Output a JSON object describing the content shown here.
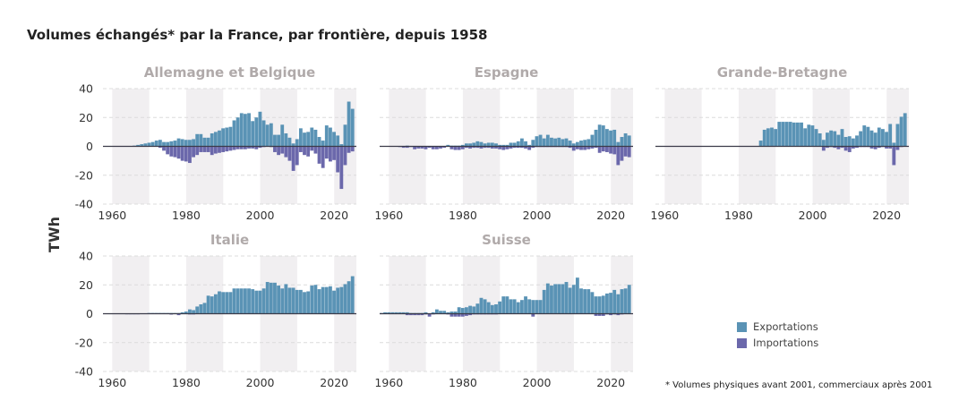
{
  "title": "Volumes échangés* par la France, par frontière, depuis 1958",
  "footnote": "* Volumes physiques avant 2001, commerciaux après 2001",
  "colors": {
    "exports": "#5a93b5",
    "imports": "#6b68ab",
    "band": "#f1eff1",
    "panel_title": "#b0aaaa"
  },
  "chart_data": {
    "type": "bar",
    "stacked_diverging": true,
    "ylabel": "TWh",
    "ylim": [
      -40,
      40
    ],
    "yticks": [
      40,
      20,
      0,
      -20,
      -40
    ],
    "xticks": [
      1960,
      1980,
      2000,
      2020
    ],
    "xlim": [
      1957.5,
      2026
    ],
    "shaded_decades": [
      [
        1960,
        1970
      ],
      [
        1980,
        1990
      ],
      [
        2000,
        2010
      ],
      [
        2020,
        2026
      ]
    ],
    "grid": true,
    "legend": {
      "position": "bottom-right",
      "items": [
        "Exportations",
        "Importations"
      ]
    },
    "years": [
      1958,
      1959,
      1960,
      1961,
      1962,
      1963,
      1964,
      1965,
      1966,
      1967,
      1968,
      1969,
      1970,
      1971,
      1972,
      1973,
      1974,
      1975,
      1976,
      1977,
      1978,
      1979,
      1980,
      1981,
      1982,
      1983,
      1984,
      1985,
      1986,
      1987,
      1988,
      1989,
      1990,
      1991,
      1992,
      1993,
      1994,
      1995,
      1996,
      1997,
      1998,
      1999,
      2000,
      2001,
      2002,
      2003,
      2004,
      2005,
      2006,
      2007,
      2008,
      2009,
      2010,
      2011,
      2012,
      2013,
      2014,
      2015,
      2016,
      2017,
      2018,
      2019,
      2020,
      2021,
      2022,
      2023,
      2024,
      2025
    ],
    "panels": [
      {
        "title": "Allemagne et Belgique",
        "exports": [
          0,
          0,
          0,
          0,
          0,
          0,
          0,
          0.2,
          0.5,
          1,
          1.5,
          2,
          2.5,
          3,
          4,
          4.5,
          3,
          3,
          3.5,
          4,
          5.5,
          5,
          4.5,
          4.5,
          5,
          8.5,
          8.5,
          6,
          6,
          9,
          10,
          11,
          12.5,
          13,
          13.5,
          18,
          20,
          23,
          22.5,
          23,
          17.5,
          20,
          24,
          18,
          15,
          16,
          8,
          8,
          15,
          9,
          6,
          2,
          5,
          12.5,
          9.5,
          10,
          13,
          11.5,
          6.5,
          4,
          14.5,
          13,
          10,
          7.5,
          1.5,
          15,
          31,
          26
        ],
        "imports": [
          0,
          0,
          0,
          0,
          0,
          0,
          0,
          0,
          0,
          0,
          0,
          0,
          0,
          0,
          0,
          -1,
          -3,
          -5.5,
          -7,
          -7.5,
          -8.5,
          -10,
          -10.5,
          -11.5,
          -7.5,
          -6,
          -4,
          -4,
          -4,
          -6,
          -5,
          -4.5,
          -4,
          -3.5,
          -3,
          -2.5,
          -2,
          -2,
          -2,
          -1.5,
          -1.5,
          -2,
          -1,
          -0.5,
          -0.3,
          -0.5,
          -4,
          -6,
          -5,
          -7.5,
          -10,
          -17,
          -13,
          -4,
          -6,
          -7,
          -3,
          -5,
          -12,
          -15,
          -8.5,
          -10.5,
          -9.5,
          -18,
          -29.5,
          -13,
          -4.5,
          -3.5
        ]
      },
      {
        "title": "Espagne",
        "exports": [
          0,
          0,
          0,
          0,
          0,
          0,
          0,
          0.5,
          0,
          0,
          0,
          0,
          0,
          0,
          0,
          0,
          0,
          0,
          1,
          0.5,
          0.5,
          0.5,
          1,
          2,
          2,
          2.5,
          3.5,
          3,
          2,
          2.5,
          2.5,
          2,
          1,
          1,
          1,
          2.5,
          2.5,
          3.5,
          5.5,
          3.5,
          1,
          4.5,
          7,
          8,
          5.5,
          8,
          6,
          5.5,
          6,
          5,
          5.5,
          4,
          2,
          3,
          4,
          4.5,
          5,
          8,
          11.5,
          15,
          14.5,
          12,
          11,
          11.5,
          3,
          6.5,
          9,
          7.5
        ],
        "imports": [
          0,
          0,
          0,
          0,
          0,
          -0.5,
          -1,
          -1,
          -0.5,
          -2,
          -1.5,
          -1.5,
          -2,
          -1,
          -2,
          -2,
          -1.5,
          -1,
          0,
          -2,
          -2.5,
          -2.5,
          -2,
          -1,
          -1.5,
          -1,
          -1,
          -1.5,
          -1,
          -1,
          -1.5,
          -1.5,
          -2,
          -2.5,
          -2,
          -1.5,
          -1,
          -1,
          -1,
          -1.5,
          -2.5,
          -1,
          -0.5,
          -0.5,
          -0.5,
          -0.5,
          -0.5,
          -0.5,
          -0.5,
          -0.5,
          -0.5,
          -1,
          -3,
          -2,
          -2.5,
          -2.5,
          -2,
          -1.5,
          -1,
          -4.5,
          -3.5,
          -4,
          -5,
          -5.5,
          -13,
          -10,
          -7,
          -7.5
        ]
      },
      {
        "title": "Grande-Bretagne",
        "exports": [
          0,
          0,
          0,
          0,
          0,
          0,
          0,
          0,
          0,
          0,
          0.3,
          0.3,
          0,
          0,
          0,
          0,
          0,
          0,
          0,
          0,
          0,
          0,
          0,
          0,
          0,
          0,
          0,
          0,
          4,
          11.5,
          12.5,
          13,
          12,
          17,
          17,
          17,
          17,
          16.5,
          16.5,
          16.5,
          12.5,
          15,
          14.5,
          12,
          9,
          4.5,
          9.5,
          11,
          10.5,
          8,
          12,
          6.5,
          7,
          5.5,
          7.5,
          10.5,
          14.5,
          13.5,
          11,
          9.5,
          13,
          12,
          10,
          15.5,
          2.5,
          15.5,
          20.5,
          23
        ],
        "imports": [
          0,
          0,
          0,
          0,
          0,
          0,
          0,
          0,
          0,
          0,
          0,
          0,
          0,
          0,
          0,
          0,
          0,
          0,
          0,
          0,
          0,
          0,
          0,
          0,
          0,
          0,
          0,
          0,
          0,
          0,
          0,
          0,
          0,
          0,
          0,
          0,
          0,
          0,
          0,
          0,
          0,
          0,
          0,
          0,
          0,
          -3,
          -1,
          -0.5,
          -1,
          -2,
          -1,
          -3,
          -4,
          -1.5,
          -1,
          -0.5,
          -0.5,
          -0.5,
          -1.5,
          -2,
          -1,
          -0.5,
          -1.5,
          -1.5,
          -13,
          -2.5,
          -0.5,
          -0.3
        ]
      },
      {
        "title": "Italie",
        "exports": [
          0,
          0,
          0,
          0,
          0,
          0,
          0,
          0,
          0,
          0,
          0,
          0,
          0.5,
          0.5,
          0.5,
          0.5,
          0.5,
          0.5,
          0.5,
          0.5,
          0.5,
          1,
          1.5,
          3,
          2.5,
          5,
          6.5,
          7.5,
          12.5,
          12,
          13.5,
          15.5,
          15,
          15,
          15,
          17.5,
          17.5,
          17.5,
          17.5,
          17.5,
          17,
          16,
          16,
          17.5,
          22,
          21.5,
          21.5,
          19.5,
          17.5,
          20.5,
          18,
          18,
          16.5,
          16.5,
          15,
          15.5,
          19.5,
          20,
          17,
          18.5,
          18.5,
          19,
          16,
          18,
          18.5,
          20.5,
          22.5,
          26
        ],
        "imports": [
          -0.2,
          -0.2,
          -0.2,
          -0.2,
          -0.2,
          -0.2,
          -0.4,
          -0.4,
          -0.4,
          -0.4,
          -0.2,
          -0.2,
          -0.2,
          -0.2,
          -0.2,
          -0.2,
          -0.2,
          -0.2,
          -0.6,
          -0.2,
          -1,
          -0.2,
          -0.2,
          -0.5,
          -0.5,
          -0.2,
          -0.2,
          -0.2,
          -0.2,
          -0.2,
          -0.2,
          -0.2,
          -0.2,
          -0.2,
          -0.2,
          -0.2,
          -0.2,
          -0.2,
          -0.2,
          -0.2,
          -0.2,
          -0.2,
          -0.2,
          -0.2,
          -0.2,
          -0.2,
          -0.2,
          -0.2,
          -0.2,
          -0.2,
          -0.2,
          -0.2,
          -0.2,
          -0.2,
          -0.2,
          -0.2,
          -0.2,
          -0.2,
          -0.2,
          -0.2,
          -0.2,
          -0.2,
          -0.2,
          -0.2,
          -0.2,
          -0.2,
          -0.2,
          -0.2
        ]
      },
      {
        "title": "Suisse",
        "exports": [
          0.5,
          1,
          1,
          1,
          1,
          1,
          1,
          1,
          0.5,
          0.5,
          0.5,
          0.5,
          1,
          0,
          1,
          3,
          2,
          2,
          1,
          1.5,
          1.5,
          4.5,
          4,
          4.5,
          5.5,
          5,
          7,
          11,
          10,
          8,
          6,
          6.5,
          8.5,
          12,
          12,
          10,
          10,
          8,
          9.5,
          12,
          10,
          9.5,
          9.5,
          9.5,
          16.5,
          21,
          19.5,
          20.5,
          20.5,
          20.5,
          22,
          18,
          20,
          25,
          17.5,
          17,
          17,
          15,
          12,
          12,
          12.5,
          14,
          14.5,
          16.5,
          13.5,
          17,
          17.5,
          20
        ],
        "imports": [
          -0.3,
          -0.3,
          -0.3,
          -0.3,
          -0.3,
          -0.3,
          -0.3,
          -1,
          -1,
          -1,
          -1,
          -1,
          -0.5,
          -2,
          -0.5,
          -0.3,
          -0.3,
          -0.3,
          -0.5,
          -2,
          -2,
          -2,
          -2,
          -1.5,
          -1,
          -0.5,
          -0.5,
          -0.5,
          -0.5,
          -0.5,
          -0.5,
          -0.5,
          -0.3,
          -0.3,
          -0.3,
          -0.3,
          -0.3,
          -0.3,
          -0.3,
          -0.3,
          -0.3,
          -2,
          -0.3,
          -0.3,
          -0.3,
          -0.3,
          -0.3,
          -0.3,
          -0.3,
          -0.3,
          -0.3,
          -0.3,
          -0.3,
          -0.3,
          -0.3,
          -0.3,
          -0.3,
          -0.3,
          -1.5,
          -1.5,
          -1.5,
          -0.5,
          -1,
          -0.5,
          -1,
          -0.5,
          -0.3,
          -0.3
        ]
      }
    ]
  }
}
